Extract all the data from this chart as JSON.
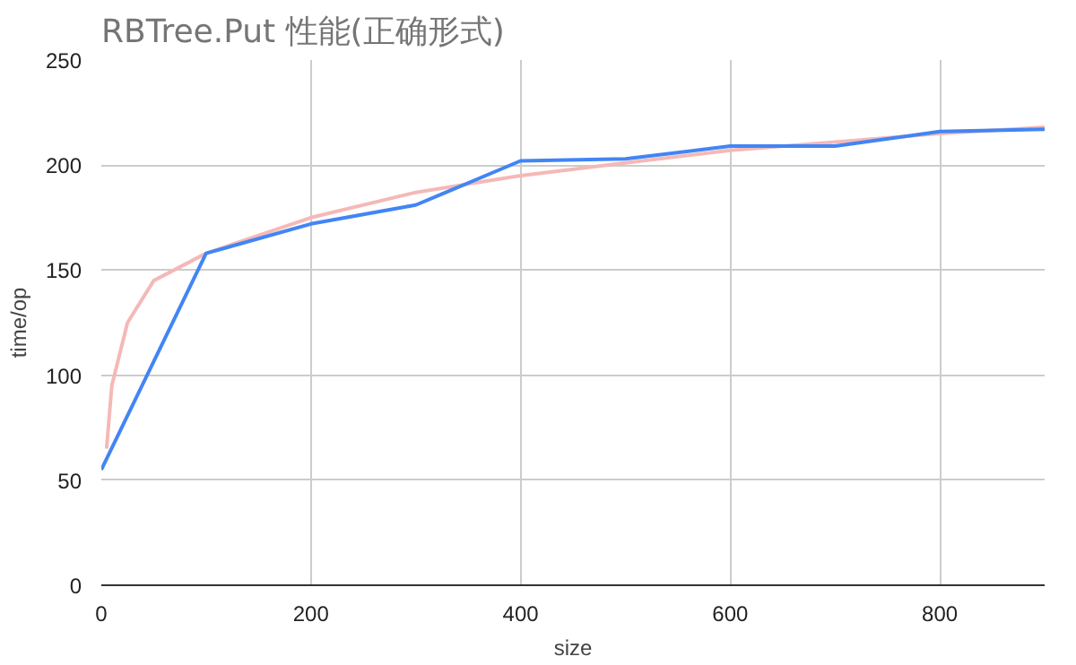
{
  "chart_data": {
    "type": "line",
    "title": "RBTree.Put 性能(正确形式)",
    "xlabel": "size",
    "ylabel": "time/op",
    "xlim": [
      0,
      900
    ],
    "xticks": [
      0,
      200,
      400,
      600,
      800
    ],
    "ylim": [
      0,
      250
    ],
    "yticks": [
      0,
      50,
      100,
      150,
      200,
      250
    ],
    "grid": true,
    "series": [
      {
        "color": "#f4b9b7",
        "x": [
          5,
          10,
          25,
          50,
          100,
          200,
          300,
          400,
          500,
          600,
          700,
          800,
          900
        ],
        "values": [
          65,
          95,
          125,
          145,
          158,
          175,
          187,
          195,
          201,
          207,
          211,
          215,
          218
        ]
      },
      {
        "color": "#4285f4",
        "x": [
          0,
          100,
          200,
          300,
          400,
          500,
          600,
          700,
          800,
          900
        ],
        "values": [
          55,
          158,
          172,
          181,
          202,
          203,
          209,
          209,
          216,
          217
        ]
      }
    ]
  }
}
